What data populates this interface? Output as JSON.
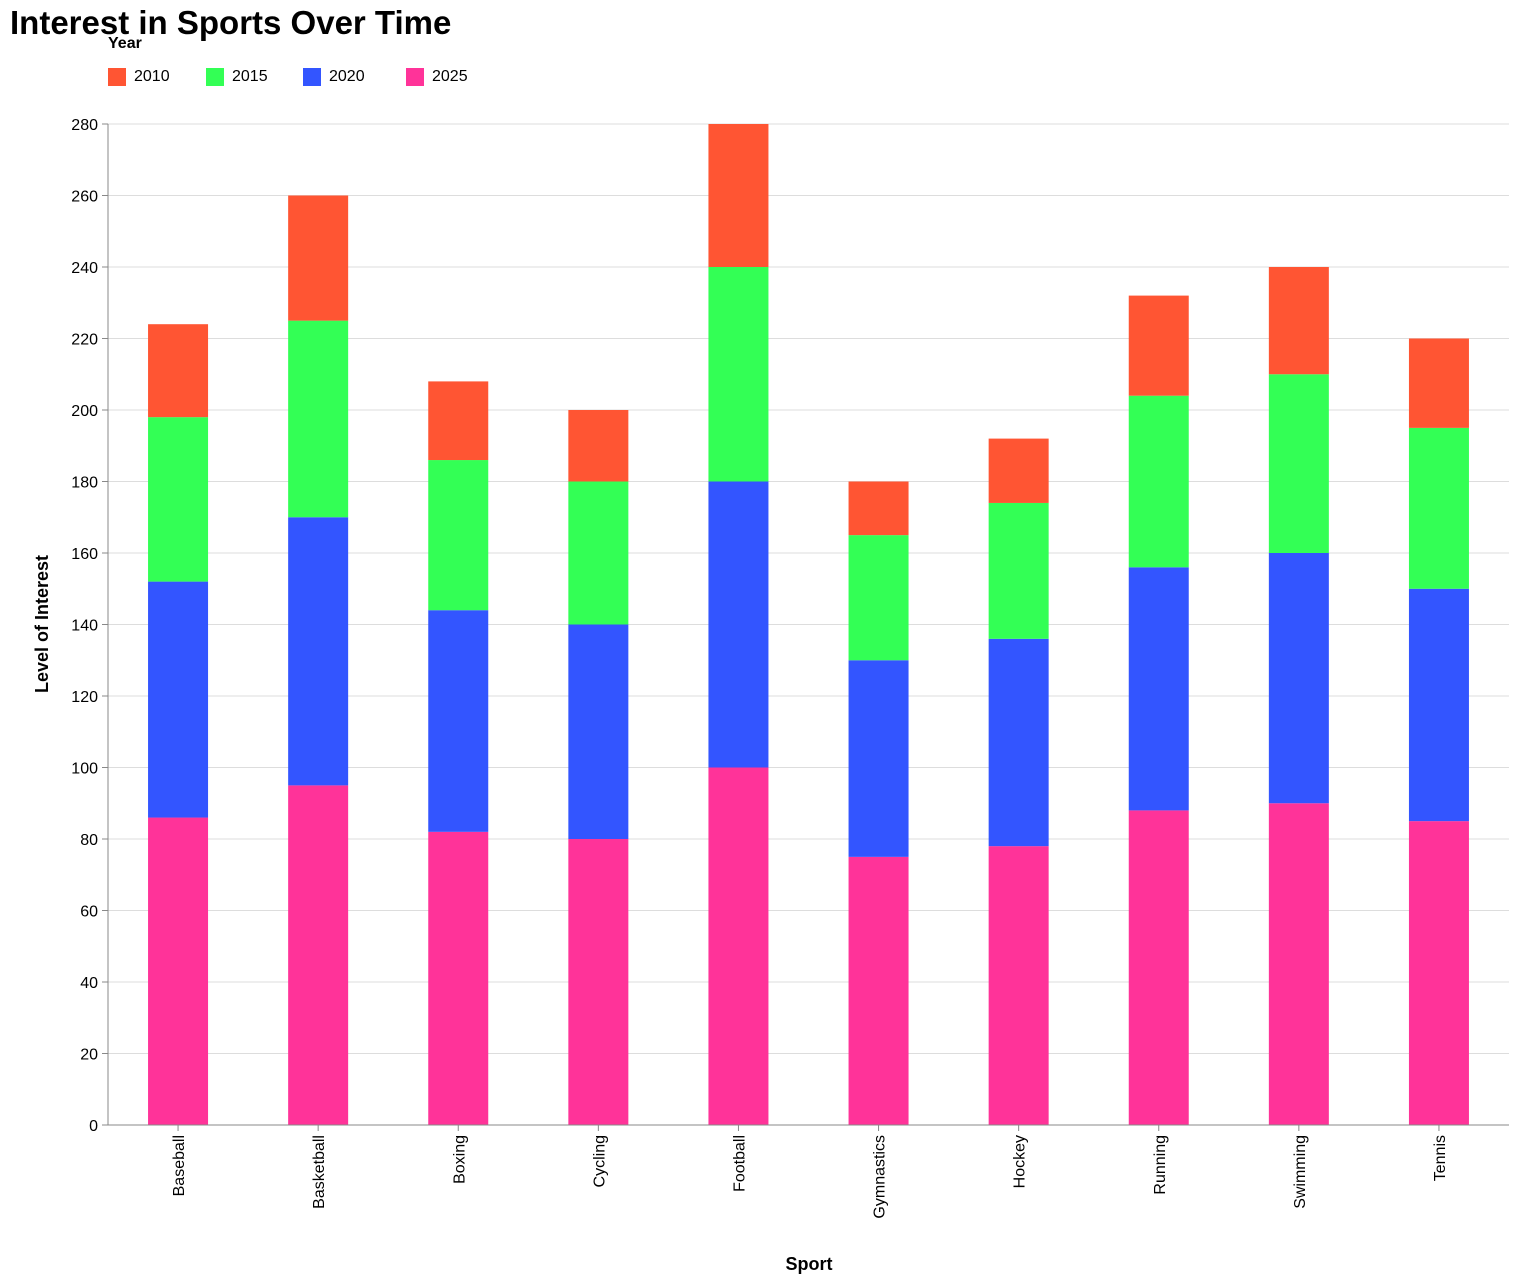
{
  "chart_data": {
    "type": "bar",
    "stacked": true,
    "title": "Interest in Sports Over Time",
    "xlabel": "Sport",
    "ylabel": "Level of Interest",
    "ylim": [
      0,
      280
    ],
    "yticks": [
      0,
      20,
      40,
      60,
      80,
      100,
      120,
      140,
      160,
      180,
      200,
      220,
      240,
      260,
      280
    ],
    "grid": true,
    "legend_title": "Year",
    "legend_position": "top-left",
    "categories": [
      "Baseball",
      "Basketball",
      "Boxing",
      "Cycling",
      "Football",
      "Gymnastics",
      "Hockey",
      "Running",
      "Swimming",
      "Tennis"
    ],
    "series": [
      {
        "name": "2025",
        "color": "#FF3399",
        "values": [
          86,
          95,
          82,
          80,
          100,
          75,
          78,
          88,
          90,
          85
        ]
      },
      {
        "name": "2020",
        "color": "#3355FF",
        "values": [
          66,
          75,
          62,
          60,
          80,
          55,
          58,
          68,
          70,
          65
        ]
      },
      {
        "name": "2015",
        "color": "#33FF55",
        "values": [
          46,
          55,
          42,
          40,
          60,
          35,
          38,
          48,
          50,
          45
        ]
      },
      {
        "name": "2010",
        "color": "#FF5533",
        "values": [
          26,
          35,
          22,
          20,
          40,
          15,
          18,
          28,
          30,
          25
        ]
      }
    ],
    "legend_order": [
      "2010",
      "2015",
      "2020",
      "2025"
    ]
  }
}
